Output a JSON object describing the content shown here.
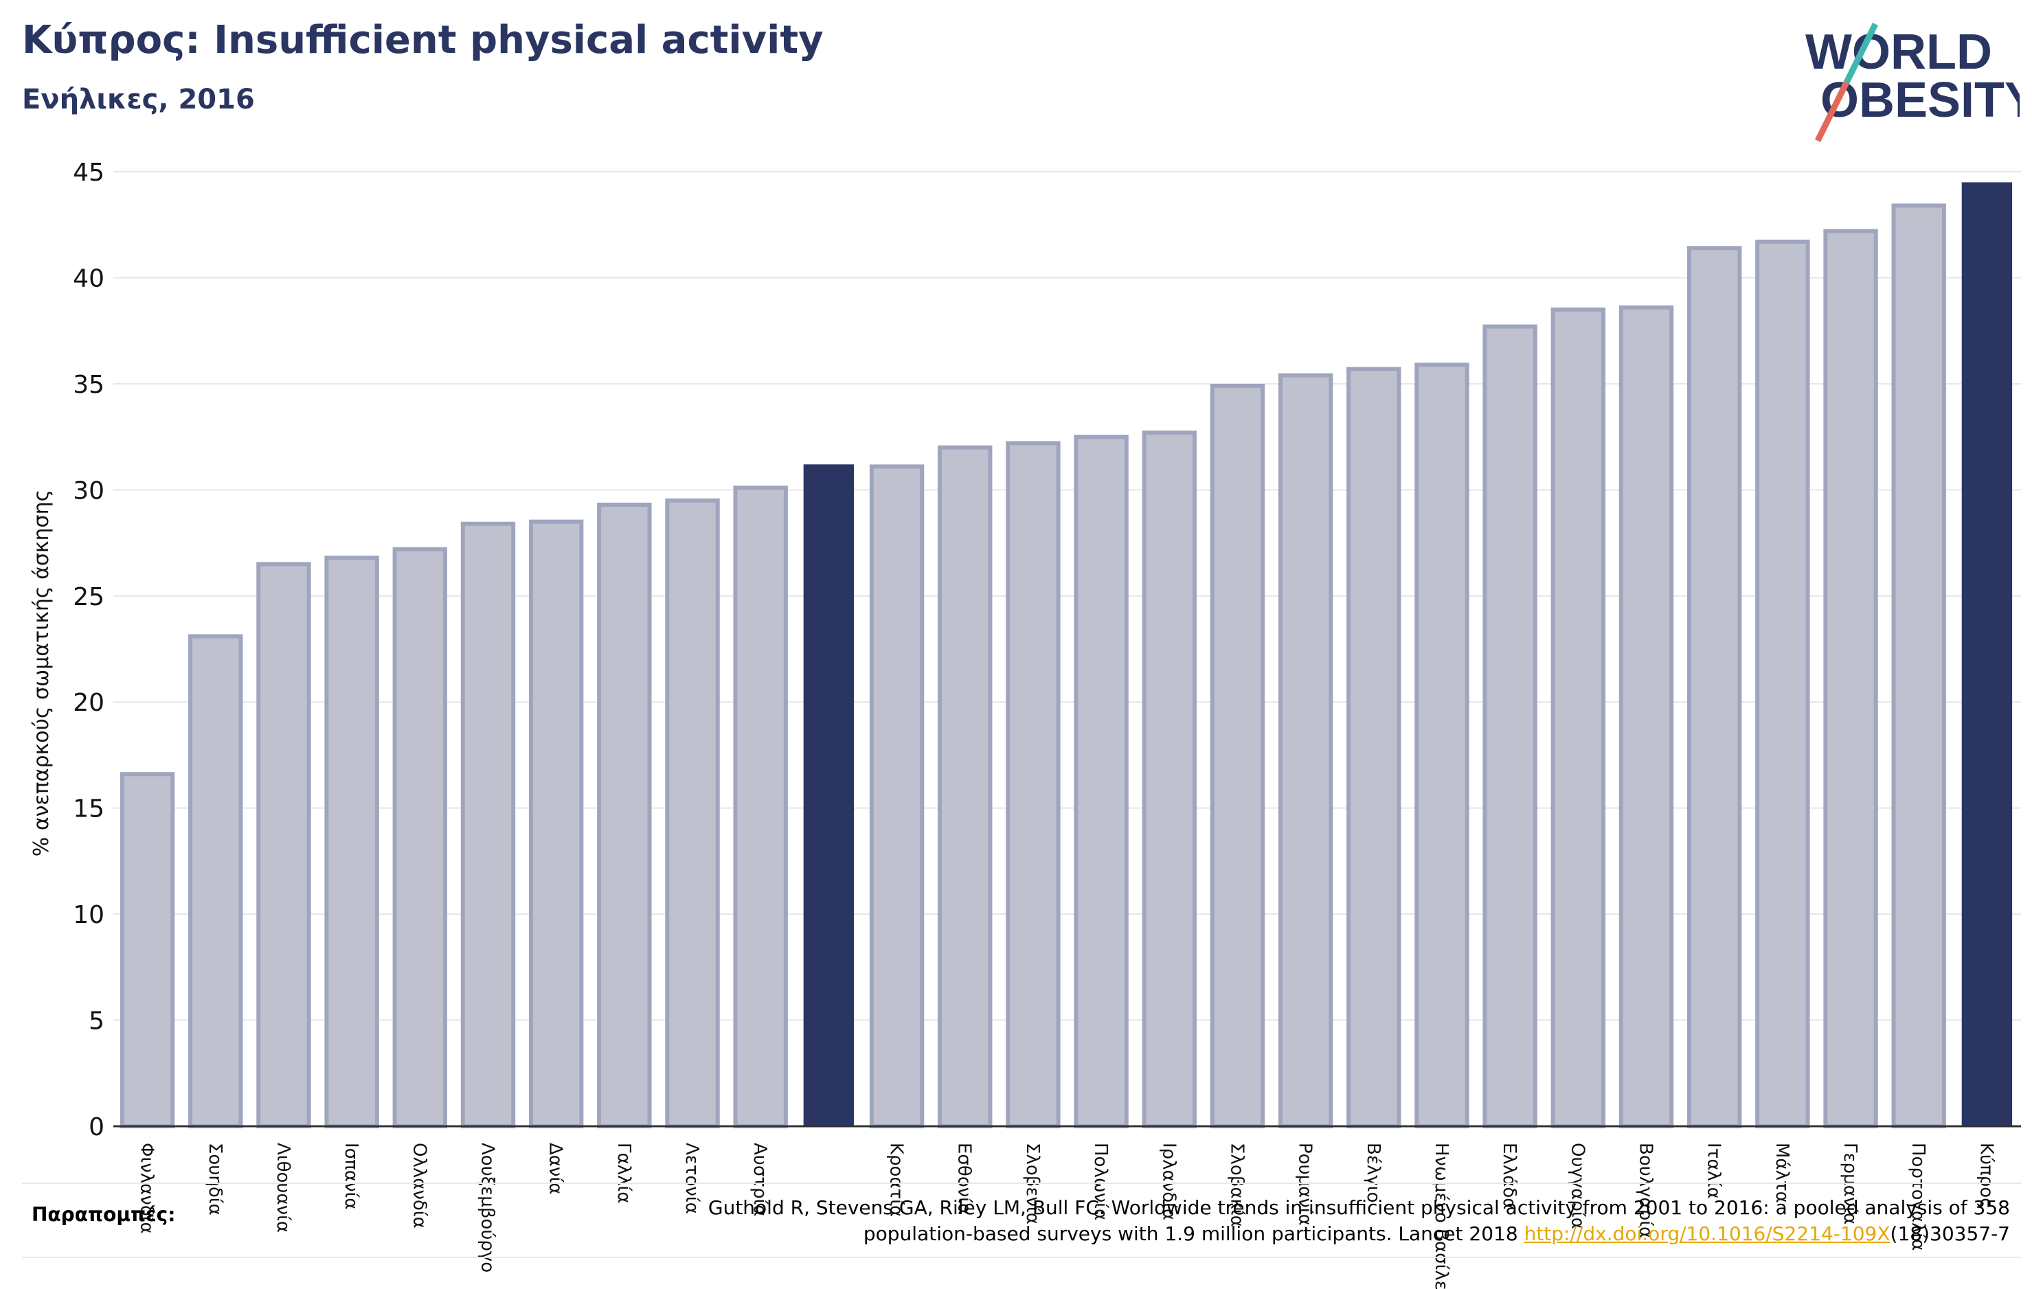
{
  "header": {
    "title": "Κύπρος: Insufficient physical activity",
    "subtitle": "Ενήλικες, 2016"
  },
  "logo": {
    "line1": "WORLD",
    "line2": "OBESITY"
  },
  "colors": {
    "bar": "#bfc2ce",
    "bar_edge": "#9fa5be",
    "highlight": "#2a3561",
    "grid": "#e6e6e6",
    "link": "#e6a700"
  },
  "chart_data": {
    "type": "bar",
    "ylabel": "% ανεπαρκούς σωματικής άσκησης",
    "ylim": [
      0,
      45
    ],
    "yticks": [
      0,
      5,
      10,
      15,
      20,
      25,
      30,
      35,
      40,
      45
    ],
    "grid": true,
    "categories": [
      "Φινλανδία",
      "Σουηδία",
      "Λιθουανία",
      "Ισπανία",
      "Ολλανδία",
      "Λουξεμβούργο",
      "Δανία",
      "Γαλλία",
      "Λετονία",
      "Αυστρία",
      "",
      "Κροατία",
      "Εσθονία",
      "Σλοβενία",
      "Πολωνία",
      "Ιρλανδία",
      "Σλοβακία",
      "Ρουμανία",
      "Βέλγιο",
      "Ηνωμένο Βασίλειο",
      "Ελλάδα",
      "Ουγγαρία",
      "Βουλγαρία",
      "Ιταλία",
      "Μάλτα",
      "Γερμανία",
      "Πορτογαλία",
      "Κύπρος"
    ],
    "values": [
      16.6,
      23.1,
      26.5,
      26.8,
      27.2,
      28.4,
      28.5,
      29.3,
      29.5,
      30.1,
      31.2,
      31.1,
      32.0,
      32.2,
      32.5,
      32.7,
      34.9,
      35.4,
      35.7,
      35.9,
      37.7,
      38.5,
      38.6,
      41.4,
      41.7,
      42.2,
      43.4,
      44.5
    ],
    "highlighted": [
      10,
      27
    ]
  },
  "references": {
    "label": "Παραπομπές:",
    "line1": "Guthold R, Stevens GA, Riley LM, Bull FC. Worldwide trends in insufficient physical activity from 2001 to 2016: a pooled analysis of 358",
    "line2_prefix": "population-based surveys with 1.9 million participants. Lancet 2018 ",
    "link": "http://dx.doi.org/10.1016/S2214-109X",
    "line2_suffix": "(18)30357-7"
  }
}
